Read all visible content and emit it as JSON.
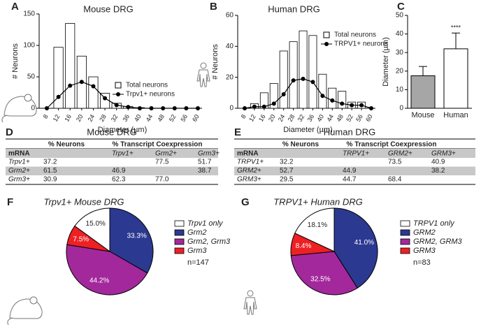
{
  "chart_data": [
    {
      "type": "histogram-line",
      "panel": "A",
      "title": "Mouse DRG",
      "xlabel": "Diameter (µm)",
      "ylabel": "# Neurons",
      "categories": [
        "8",
        "12",
        "16",
        "20",
        "24",
        "28",
        "32",
        "36",
        "40",
        "44",
        "48",
        "52",
        "56",
        "60"
      ],
      "ylim": [
        0,
        150
      ],
      "yticks": [
        0,
        50,
        100,
        150
      ],
      "series": [
        {
          "name": "Total neurons",
          "kind": "bar",
          "color": "#ffffff",
          "values": [
            0,
            97,
            135,
            83,
            50,
            24,
            8,
            3,
            1,
            0,
            0,
            0,
            0,
            0
          ]
        },
        {
          "name": "Trpv1+ neurons",
          "kind": "line",
          "color": "#000000",
          "values": [
            0,
            18,
            36,
            42,
            35,
            16,
            5,
            2,
            0,
            0,
            0,
            0,
            0,
            0
          ]
        }
      ]
    },
    {
      "type": "histogram-line",
      "panel": "B",
      "title": "Human DRG",
      "xlabel": "Diameter (µm)",
      "ylabel": "# Neurons",
      "categories": [
        "8",
        "12",
        "16",
        "20",
        "24",
        "28",
        "32",
        "36",
        "40",
        "44",
        "48",
        "52",
        "56",
        "60"
      ],
      "ylim": [
        0,
        60
      ],
      "yticks": [
        0,
        20,
        40,
        60
      ],
      "series": [
        {
          "name": "Total neurons",
          "kind": "bar",
          "color": "#ffffff",
          "values": [
            0,
            3,
            10,
            16,
            37,
            43,
            50,
            47,
            22,
            13,
            11,
            4,
            4,
            0
          ]
        },
        {
          "name": "TRPV1+ neurons",
          "kind": "line",
          "color": "#000000",
          "values": [
            0,
            1,
            1,
            3,
            9,
            18,
            19,
            17,
            8,
            5,
            3,
            2,
            2,
            0
          ]
        }
      ]
    },
    {
      "type": "bar-error",
      "panel": "C",
      "ylabel": "Diameter (µm)",
      "categories": [
        "Mouse",
        "Human"
      ],
      "values": [
        17.5,
        32
      ],
      "errors": [
        5,
        8.5
      ],
      "colors": [
        "#a6a6a6",
        "#ffffff"
      ],
      "ylim": [
        0,
        50
      ],
      "yticks": [
        0,
        10,
        20,
        30,
        40,
        50
      ],
      "annotation": "****"
    },
    {
      "type": "pie",
      "panel": "F",
      "title": "Trpv1+ Mouse DRG",
      "categories": [
        "Trpv1 only",
        "Grm2",
        "Grm2, Grm3",
        "Grm3"
      ],
      "values": [
        15.0,
        33.3,
        44.2,
        7.5
      ],
      "value_labels": [
        "15.0%",
        "33.3%",
        "44.2%",
        "7.5%"
      ],
      "colors": [
        "#ffffff",
        "#2b3990",
        "#a3289b",
        "#ed2024"
      ],
      "note": "n=147"
    },
    {
      "type": "pie",
      "panel": "G",
      "title": "TRPV1+ Human DRG",
      "categories": [
        "TRPV1 only",
        "GRM2",
        "GRM2, GRM3",
        "GRM3"
      ],
      "values": [
        18.1,
        41.0,
        32.5,
        8.4
      ],
      "value_labels": [
        "18.1%",
        "41.0%",
        "32.5%",
        "8.4%"
      ],
      "colors": [
        "#ffffff",
        "#2b3990",
        "#a3289b",
        "#ed2024"
      ],
      "note": "n=83"
    }
  ],
  "tables": [
    {
      "panel": "D",
      "title": "Mouse DRG",
      "group_headers": [
        "% Neurons",
        "% Transcript Coexpression"
      ],
      "columns": [
        "mRNA",
        "Trpv1+",
        "Grm2+",
        "Grm3+"
      ],
      "rows": [
        [
          "Trpv1+",
          "37.2",
          null,
          "77.5",
          "51.7"
        ],
        [
          "Grm2+",
          "61.5",
          "46.9",
          null,
          "38.7"
        ],
        [
          "Grm3+",
          "30.9",
          "62.3",
          "77.0",
          null
        ]
      ]
    },
    {
      "panel": "E",
      "title": "Human DRG",
      "group_headers": [
        "% Neurons",
        "% Transcript Coexpression"
      ],
      "columns": [
        "mRNA",
        "TRPV1+",
        "GRM2+",
        "GRM3+"
      ],
      "rows": [
        [
          "TRPV1+",
          "32.2",
          null,
          "73.5",
          "40.9"
        ],
        [
          "GRM2+",
          "52.7",
          "44.9",
          null,
          "38.2"
        ],
        [
          "GRM3+",
          "29.5",
          "44.7",
          "68.4",
          null
        ]
      ]
    }
  ]
}
